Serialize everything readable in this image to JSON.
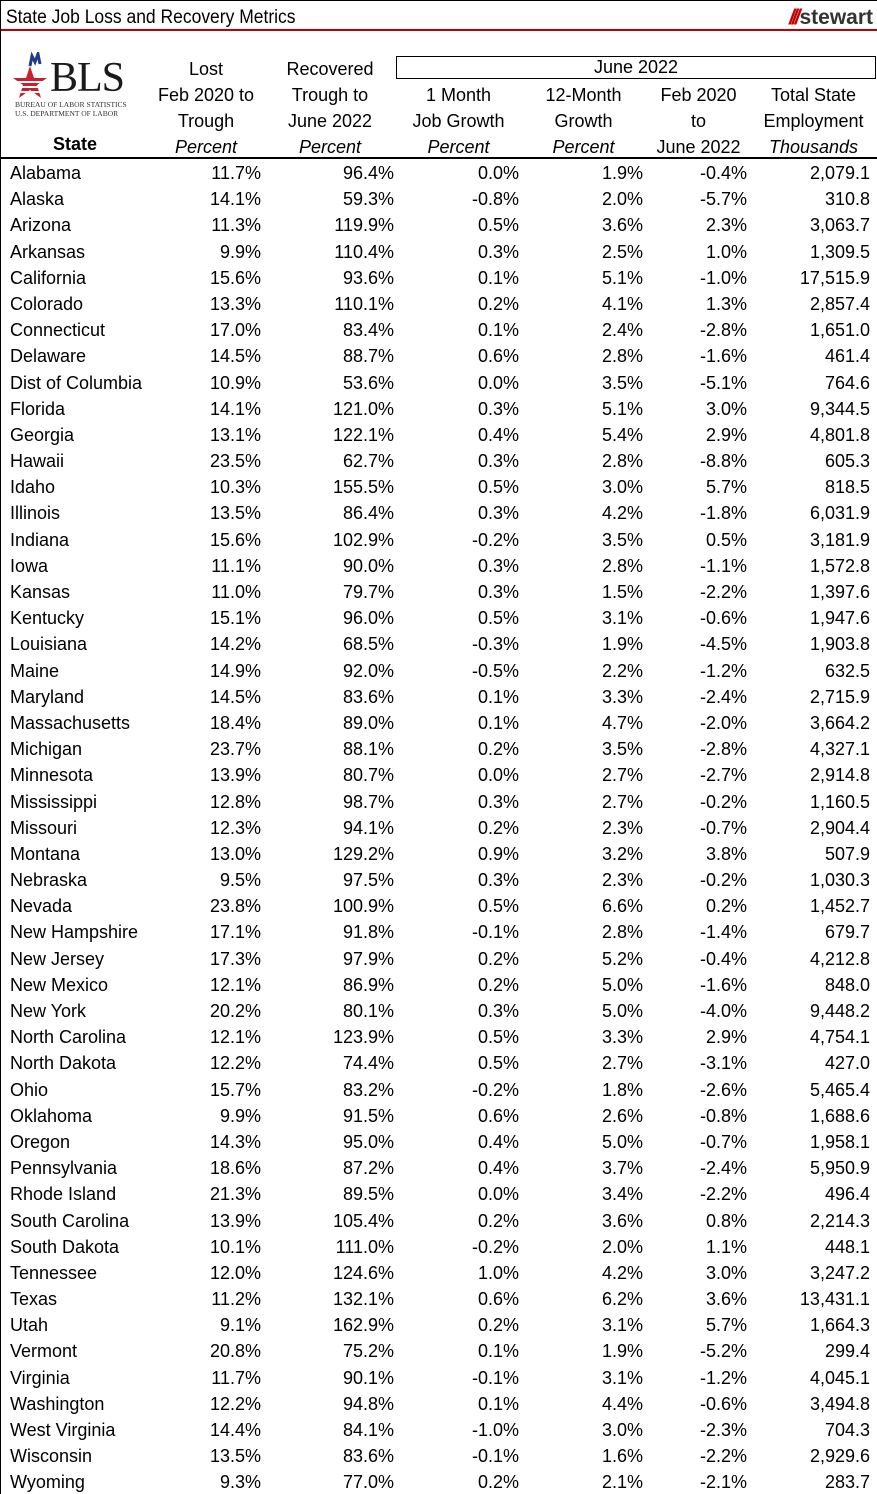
{
  "header": {
    "title": "State Job Loss and Recovery Metrics",
    "brand": "stewart",
    "bls_logo": {
      "text": "BLS",
      "line1": "BUREAU OF LABOR STATISTICS",
      "line2": "U.S. DEPARTMENT OF LABOR"
    },
    "group_label": "June 2022",
    "columns": [
      {
        "lines": [
          "State"
        ]
      },
      {
        "lines": [
          "Lost",
          "Feb 2020 to",
          "Trough"
        ],
        "unit": "Percent"
      },
      {
        "lines": [
          "Recovered",
          "Trough to",
          "June 2022"
        ],
        "unit": "Percent"
      },
      {
        "lines": [
          "1 Month",
          "Job Growth"
        ],
        "unit": "Percent"
      },
      {
        "lines": [
          "12-Month",
          "Growth"
        ],
        "unit": "Percent"
      },
      {
        "lines": [
          "Feb 2020",
          "to"
        ],
        "unit": "June 2022"
      },
      {
        "lines": [
          "Total State",
          "Employment"
        ],
        "unit": "Thousands"
      }
    ]
  },
  "colors": {
    "accent": "#c00000"
  },
  "rows": [
    [
      "Alabama",
      "11.7%",
      "96.4%",
      "0.0%",
      "1.9%",
      "-0.4%",
      "2,079.1"
    ],
    [
      "Alaska",
      "14.1%",
      "59.3%",
      "-0.8%",
      "2.0%",
      "-5.7%",
      "310.8"
    ],
    [
      "Arizona",
      "11.3%",
      "119.9%",
      "0.5%",
      "3.6%",
      "2.3%",
      "3,063.7"
    ],
    [
      "Arkansas",
      "9.9%",
      "110.4%",
      "0.3%",
      "2.5%",
      "1.0%",
      "1,309.5"
    ],
    [
      "California",
      "15.6%",
      "93.6%",
      "0.1%",
      "5.1%",
      "-1.0%",
      "17,515.9"
    ],
    [
      "Colorado",
      "13.3%",
      "110.1%",
      "0.2%",
      "4.1%",
      "1.3%",
      "2,857.4"
    ],
    [
      "Connecticut",
      "17.0%",
      "83.4%",
      "0.1%",
      "2.4%",
      "-2.8%",
      "1,651.0"
    ],
    [
      "Delaware",
      "14.5%",
      "88.7%",
      "0.6%",
      "2.8%",
      "-1.6%",
      "461.4"
    ],
    [
      "Dist of Columbia",
      "10.9%",
      "53.6%",
      "0.0%",
      "3.5%",
      "-5.1%",
      "764.6"
    ],
    [
      "Florida",
      "14.1%",
      "121.0%",
      "0.3%",
      "5.1%",
      "3.0%",
      "9,344.5"
    ],
    [
      "Georgia",
      "13.1%",
      "122.1%",
      "0.4%",
      "5.4%",
      "2.9%",
      "4,801.8"
    ],
    [
      "Hawaii",
      "23.5%",
      "62.7%",
      "0.3%",
      "2.8%",
      "-8.8%",
      "605.3"
    ],
    [
      "Idaho",
      "10.3%",
      "155.5%",
      "0.5%",
      "3.0%",
      "5.7%",
      "818.5"
    ],
    [
      "Illinois",
      "13.5%",
      "86.4%",
      "0.3%",
      "4.2%",
      "-1.8%",
      "6,031.9"
    ],
    [
      "Indiana",
      "15.6%",
      "102.9%",
      "-0.2%",
      "3.5%",
      "0.5%",
      "3,181.9"
    ],
    [
      "Iowa",
      "11.1%",
      "90.0%",
      "0.3%",
      "2.8%",
      "-1.1%",
      "1,572.8"
    ],
    [
      "Kansas",
      "11.0%",
      "79.7%",
      "0.3%",
      "1.5%",
      "-2.2%",
      "1,397.6"
    ],
    [
      "Kentucky",
      "15.1%",
      "96.0%",
      "0.5%",
      "3.1%",
      "-0.6%",
      "1,947.6"
    ],
    [
      "Louisiana",
      "14.2%",
      "68.5%",
      "-0.3%",
      "1.9%",
      "-4.5%",
      "1,903.8"
    ],
    [
      "Maine",
      "14.9%",
      "92.0%",
      "-0.5%",
      "2.2%",
      "-1.2%",
      "632.5"
    ],
    [
      "Maryland",
      "14.5%",
      "83.6%",
      "0.1%",
      "3.3%",
      "-2.4%",
      "2,715.9"
    ],
    [
      "Massachusetts",
      "18.4%",
      "89.0%",
      "0.1%",
      "4.7%",
      "-2.0%",
      "3,664.2"
    ],
    [
      "Michigan",
      "23.7%",
      "88.1%",
      "0.2%",
      "3.5%",
      "-2.8%",
      "4,327.1"
    ],
    [
      "Minnesota",
      "13.9%",
      "80.7%",
      "0.0%",
      "2.7%",
      "-2.7%",
      "2,914.8"
    ],
    [
      "Mississippi",
      "12.8%",
      "98.7%",
      "0.3%",
      "2.7%",
      "-0.2%",
      "1,160.5"
    ],
    [
      "Missouri",
      "12.3%",
      "94.1%",
      "0.2%",
      "2.3%",
      "-0.7%",
      "2,904.4"
    ],
    [
      "Montana",
      "13.0%",
      "129.2%",
      "0.9%",
      "3.2%",
      "3.8%",
      "507.9"
    ],
    [
      "Nebraska",
      "9.5%",
      "97.5%",
      "0.3%",
      "2.3%",
      "-0.2%",
      "1,030.3"
    ],
    [
      "Nevada",
      "23.8%",
      "100.9%",
      "0.5%",
      "6.6%",
      "0.2%",
      "1,452.7"
    ],
    [
      "New Hampshire",
      "17.1%",
      "91.8%",
      "-0.1%",
      "2.8%",
      "-1.4%",
      "679.7"
    ],
    [
      "New Jersey",
      "17.3%",
      "97.9%",
      "0.2%",
      "5.2%",
      "-0.4%",
      "4,212.8"
    ],
    [
      "New Mexico",
      "12.1%",
      "86.9%",
      "0.2%",
      "5.0%",
      "-1.6%",
      "848.0"
    ],
    [
      "New York",
      "20.2%",
      "80.1%",
      "0.3%",
      "5.0%",
      "-4.0%",
      "9,448.2"
    ],
    [
      "North Carolina",
      "12.1%",
      "123.9%",
      "0.5%",
      "3.3%",
      "2.9%",
      "4,754.1"
    ],
    [
      "North Dakota",
      "12.2%",
      "74.4%",
      "0.5%",
      "2.7%",
      "-3.1%",
      "427.0"
    ],
    [
      "Ohio",
      "15.7%",
      "83.2%",
      "-0.2%",
      "1.8%",
      "-2.6%",
      "5,465.4"
    ],
    [
      "Oklahoma",
      "9.9%",
      "91.5%",
      "0.6%",
      "2.6%",
      "-0.8%",
      "1,688.6"
    ],
    [
      "Oregon",
      "14.3%",
      "95.0%",
      "0.4%",
      "5.0%",
      "-0.7%",
      "1,958.1"
    ],
    [
      "Pennsylvania",
      "18.6%",
      "87.2%",
      "0.4%",
      "3.7%",
      "-2.4%",
      "5,950.9"
    ],
    [
      "Rhode Island",
      "21.3%",
      "89.5%",
      "0.0%",
      "3.4%",
      "-2.2%",
      "496.4"
    ],
    [
      "South Carolina",
      "13.9%",
      "105.4%",
      "0.2%",
      "3.6%",
      "0.8%",
      "2,214.3"
    ],
    [
      "South Dakota",
      "10.1%",
      "111.0%",
      "-0.2%",
      "2.0%",
      "1.1%",
      "448.1"
    ],
    [
      "Tennessee",
      "12.0%",
      "124.6%",
      "1.0%",
      "4.2%",
      "3.0%",
      "3,247.2"
    ],
    [
      "Texas",
      "11.2%",
      "132.1%",
      "0.6%",
      "6.2%",
      "3.6%",
      "13,431.1"
    ],
    [
      "Utah",
      "9.1%",
      "162.9%",
      "0.2%",
      "3.1%",
      "5.7%",
      "1,664.3"
    ],
    [
      "Vermont",
      "20.8%",
      "75.2%",
      "0.1%",
      "1.9%",
      "-5.2%",
      "299.4"
    ],
    [
      "Virginia",
      "11.7%",
      "90.1%",
      "-0.1%",
      "3.1%",
      "-1.2%",
      "4,045.1"
    ],
    [
      "Washington",
      "12.2%",
      "94.8%",
      "0.1%",
      "4.4%",
      "-0.6%",
      "3,494.8"
    ],
    [
      "West Virginia",
      "14.4%",
      "84.1%",
      "-1.0%",
      "3.0%",
      "-2.3%",
      "704.3"
    ],
    [
      "Wisconsin",
      "13.5%",
      "83.6%",
      "-0.1%",
      "1.6%",
      "-2.2%",
      "2,929.6"
    ],
    [
      "Wyoming",
      "9.3%",
      "77.0%",
      "0.2%",
      "2.1%",
      "-2.1%",
      "283.7"
    ]
  ]
}
